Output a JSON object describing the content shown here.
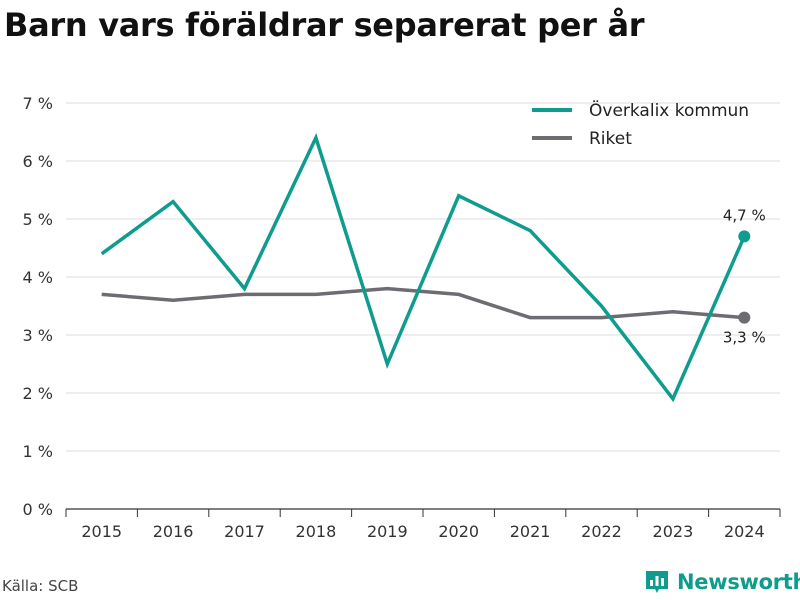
{
  "title": "Barn vars föräldrar separerat per år",
  "source": "Källa: SCB",
  "brand": {
    "name": "Newsworthy",
    "icon": "bar-chart-icon",
    "color": "#0e9c8e"
  },
  "chart_data": {
    "type": "line",
    "x": [
      "2015",
      "2016",
      "2017",
      "2018",
      "2019",
      "2020",
      "2021",
      "2022",
      "2023",
      "2024"
    ],
    "series": [
      {
        "name": "Överkalix kommun",
        "color": "#0e9c8e",
        "values": [
          4.4,
          5.3,
          3.8,
          6.4,
          2.5,
          5.4,
          4.8,
          3.5,
          1.9,
          4.7
        ],
        "end_label": "4,7 %"
      },
      {
        "name": "Riket",
        "color": "#6d6c72",
        "values": [
          3.7,
          3.6,
          3.7,
          3.7,
          3.8,
          3.7,
          3.3,
          3.3,
          3.4,
          3.3
        ],
        "end_label": "3,3 %"
      }
    ],
    "y_ticks": [
      "0 %",
      "1 %",
      "2 %",
      "3 %",
      "4 %",
      "5 %",
      "6 %",
      "7 %"
    ],
    "ylim": [
      0,
      7
    ],
    "grid": true,
    "legend": "top-right"
  }
}
